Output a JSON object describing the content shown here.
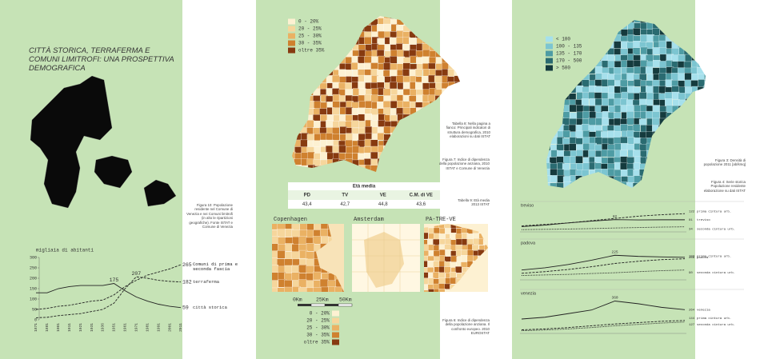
{
  "left": {
    "title": "CITTÀ STORICA, TERRAFERMA E COMUNI LIMITROFI: UNA PROSPETTIVA DEMOGRAFICA",
    "caption": "Figura 10: Popolazione residente nel Comune di Venezia e nei Comuni limitrofi (in alto le ripartizioni geografiche). Fonte ISTAT e Comune di Venezia",
    "chart": {
      "type": "line",
      "y_label": "migliaia di abitanti",
      "categories": [
        "1871",
        "1881",
        "1901",
        "1911",
        "1921",
        "1931",
        "1936",
        "1951",
        "1961",
        "1971",
        "1981",
        "1991",
        "2001",
        "2011"
      ],
      "ylim": [
        0,
        300
      ],
      "yticks": [
        0,
        50,
        100,
        150,
        200,
        250,
        300
      ],
      "series": [
        {
          "name": "Comuni di prima e seconda fascia",
          "color": "#222",
          "style": "dashed",
          "values": [
            50,
            55,
            65,
            70,
            80,
            90,
            95,
            120,
            160,
            190,
            215,
            230,
            245,
            265
          ]
        },
        {
          "name": "terraferma",
          "color": "#222",
          "style": "dashed",
          "values": [
            10,
            12,
            20,
            25,
            30,
            40,
            50,
            80,
            150,
            207,
            200,
            190,
            185,
            182
          ]
        },
        {
          "name": "città storica",
          "color": "#222",
          "style": "solid",
          "values": [
            130,
            130,
            150,
            160,
            165,
            165,
            165,
            175,
            140,
            110,
            90,
            75,
            65,
            59
          ]
        }
      ]
    }
  },
  "middle": {
    "legend": [
      {
        "label": "0 - 20%",
        "color": "#fdf1d2"
      },
      {
        "label": "20 - 25%",
        "color": "#f6d69c"
      },
      {
        "label": "25 - 30%",
        "color": "#eab163"
      },
      {
        "label": "30 - 35%",
        "color": "#cf812f"
      },
      {
        "label": "oltre 35%",
        "color": "#873a10"
      }
    ],
    "table": {
      "title": "Età media",
      "header": [
        "PD",
        "TV",
        "VE",
        "C.M. di VE"
      ],
      "rows": [
        [
          "43,4",
          "42,7",
          "44,8",
          "43,6"
        ]
      ]
    },
    "cities": [
      "Copenhagen",
      "Amsterdam",
      "PA-TRE-VE"
    ],
    "scale": [
      "0Km",
      "25Km",
      "50Km"
    ],
    "captions": [
      "Tabella 8: Nella pagina a fianco: Principali indicatori di struttura demografica, 2010 elaborazioni su dati ISTAT",
      "Figura 7: Indice di dipendenza della popolazione anziana, 2010 ISTAT e Comune di Venezia",
      "Tabella 9: Età media 2013 ISTAT",
      "Figura 6: Indice di dipendenza della popolazione anziana. Il confronto europeo. 2010 EUROSTAT"
    ]
  },
  "right": {
    "legend": [
      {
        "label": "< 100",
        "color": "#a6e0ec"
      },
      {
        "label": "100 - 135",
        "color": "#7cc5d1"
      },
      {
        "label": "135 - 170",
        "color": "#4e9ca4"
      },
      {
        "label": "170 - 500",
        "color": "#2a6b71"
      },
      {
        "label": "> 500",
        "color": "#153b3e"
      }
    ],
    "captions": [
      "Figura 3: Densità di popolazione 2011 [ab/kmq]",
      "Figura 4: Serie storica Popolazione residente elaborazione su dati ISTAT"
    ],
    "charts": [
      {
        "type": "line",
        "title": "treviso",
        "ylim": [
          0,
          150
        ],
        "series": [
          {
            "name": "treviso",
            "color": "#222",
            "style": "solid",
            "values": [
              35,
              45,
              60,
              72,
              82,
              80,
              81,
              81
            ]
          },
          {
            "name": "prima cintura urb.",
            "color": "#222",
            "style": "dashed",
            "values": [
              40,
              50,
              60,
              75,
              90,
              105,
              115,
              122
            ]
          },
          {
            "name": "seconda cintura urb.",
            "color": "#222",
            "style": "dotted",
            "values": [
              15,
              17,
              19,
              22,
              26,
              29,
              32,
              34
            ]
          }
        ]
      },
      {
        "type": "line",
        "title": "padova",
        "ylim": [
          0,
          300
        ],
        "series": [
          {
            "name": "padova",
            "color": "#222",
            "style": "solid",
            "values": [
              90,
              110,
              140,
              180,
              225,
              215,
              210,
              206
            ]
          },
          {
            "name": "prima cintura urb.",
            "color": "#222",
            "style": "dashed",
            "values": [
              60,
              75,
              95,
              120,
              150,
              170,
              185,
              193
            ]
          },
          {
            "name": "seconda cintura urb.",
            "color": "#222",
            "style": "dotted",
            "values": [
              40,
              45,
              50,
              58,
              65,
              75,
              84,
              90
            ]
          }
        ]
      },
      {
        "type": "line",
        "title": "venezia",
        "ylim": [
          0,
          400
        ],
        "series": [
          {
            "name": "venezia",
            "color": "#222",
            "style": "solid",
            "values": [
              160,
              180,
              220,
              260,
              360,
              330,
              290,
              264
            ]
          },
          {
            "name": "prima cintura urb.",
            "color": "#222",
            "style": "dashed",
            "values": [
              40,
              50,
              65,
              85,
              105,
              120,
              135,
              144
            ]
          },
          {
            "name": "seconda cintura urb.",
            "color": "#222",
            "style": "dotted",
            "values": [
              30,
              38,
              50,
              65,
              85,
              100,
              115,
              127
            ]
          }
        ]
      }
    ]
  }
}
